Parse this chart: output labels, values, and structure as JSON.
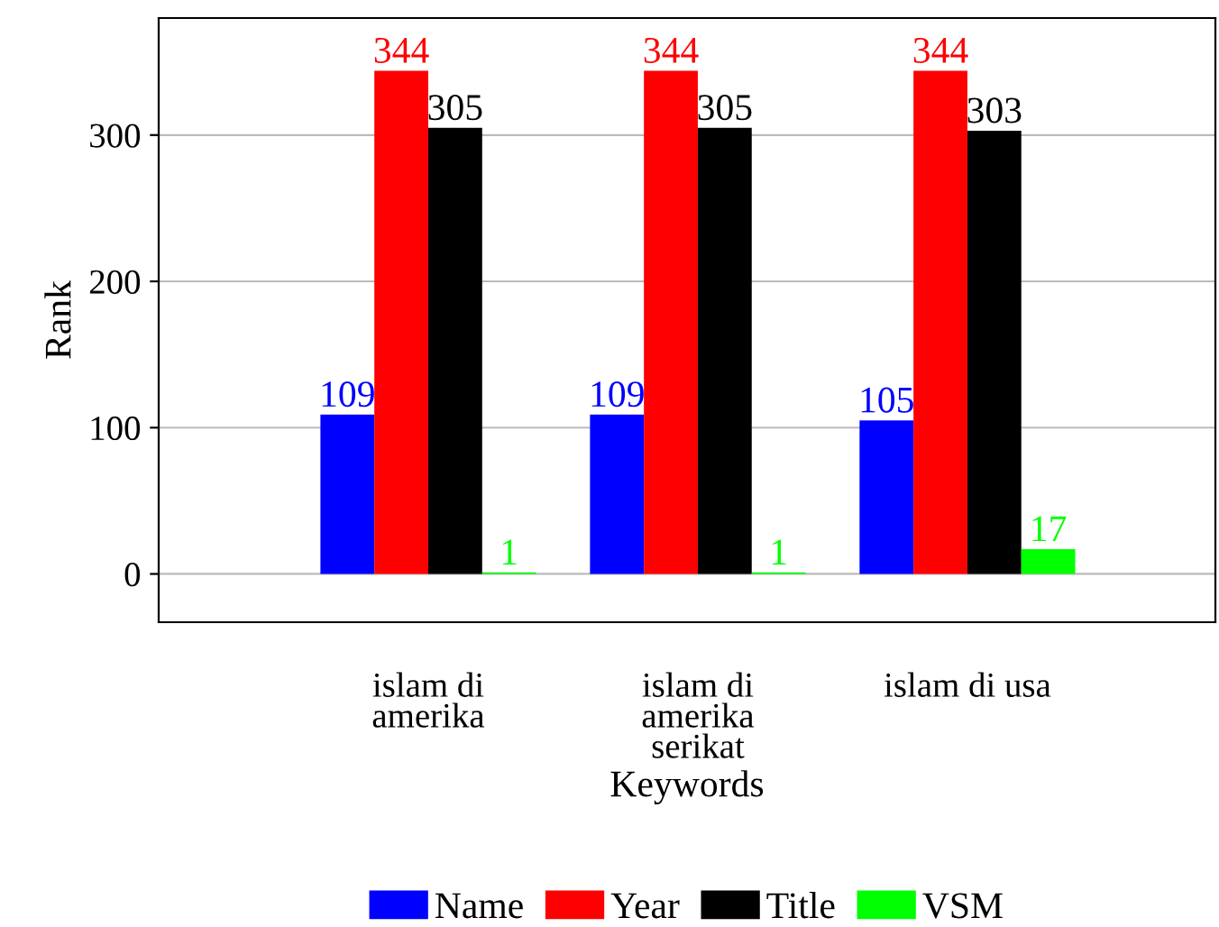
{
  "chart_data": {
    "type": "bar",
    "xlabel": "Keywords",
    "ylabel": "Rank",
    "categories": [
      "islam di amerika",
      "islam di amerika serikat",
      "islam di usa"
    ],
    "series": [
      {
        "name": "Name",
        "color": "#0000ff",
        "values": [
          109,
          109,
          105
        ]
      },
      {
        "name": "Year",
        "color": "#ff0000",
        "values": [
          344,
          344,
          344
        ]
      },
      {
        "name": "Title",
        "color": "#000000",
        "values": [
          305,
          305,
          303
        ]
      },
      {
        "name": "VSM",
        "color": "#00ff00",
        "values": [
          1,
          1,
          17
        ]
      }
    ],
    "ylim": [
      -33,
      380
    ],
    "yticks": [
      0,
      100,
      200,
      300
    ],
    "grid": "y",
    "legend": "bottom",
    "data_labels": true
  }
}
